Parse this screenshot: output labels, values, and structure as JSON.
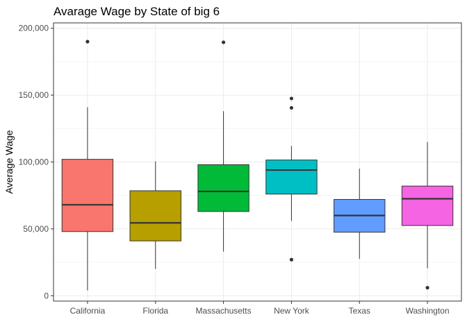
{
  "chart_data": {
    "type": "boxplot",
    "title": "Avarage Wage by State of big 6",
    "xlabel": "",
    "ylabel": "Average Wage",
    "ylim": [
      -4000,
      204000
    ],
    "yticks": [
      0,
      50000,
      100000,
      150000,
      200000
    ],
    "ytick_labels": [
      "0",
      "50,000",
      "100,000",
      "150,000",
      "200,000"
    ],
    "grid": true,
    "legend": "none",
    "categories": [
      "California",
      "Florida",
      "Massachusetts",
      "New York",
      "Texas",
      "Washington"
    ],
    "boxes": [
      {
        "category": "California",
        "whisker_low": 4000,
        "q1": 48000,
        "median": 68000,
        "q3": 102000,
        "whisker_high": 141000,
        "outliers": [
          190000
        ],
        "color": "#F8766D"
      },
      {
        "category": "Florida",
        "whisker_low": 20000,
        "q1": 41000,
        "median": 54500,
        "q3": 78500,
        "whisker_high": 100500,
        "outliers": [],
        "color": "#B79F00"
      },
      {
        "category": "Massachusetts",
        "whisker_low": 33000,
        "q1": 63000,
        "median": 78000,
        "q3": 98000,
        "whisker_high": 138000,
        "outliers": [
          189500
        ],
        "color": "#00BA38"
      },
      {
        "category": "New York",
        "whisker_low": 56000,
        "q1": 76000,
        "median": 94000,
        "q3": 101500,
        "whisker_high": 112000,
        "outliers": [
          147500,
          140500,
          27000
        ],
        "color": "#00BFC4"
      },
      {
        "category": "Texas",
        "whisker_low": 27500,
        "q1": 47500,
        "median": 60000,
        "q3": 72000,
        "whisker_high": 95000,
        "outliers": [],
        "color": "#619CFF"
      },
      {
        "category": "Washington",
        "whisker_low": 20500,
        "q1": 52500,
        "median": 72500,
        "q3": 82000,
        "whisker_high": 115000,
        "outliers": [
          6000
        ],
        "color": "#F564E3"
      }
    ]
  }
}
